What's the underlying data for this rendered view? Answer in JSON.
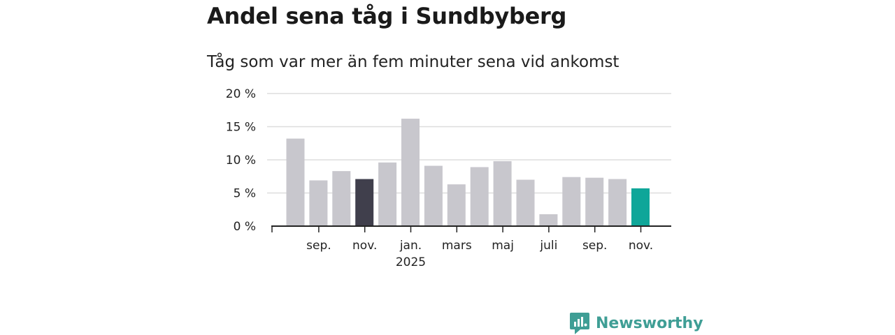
{
  "title": "Andel sena tåg i Sundbyberg",
  "subtitle": "Tåg som var mer än fem minuter sena vid ankomst",
  "brand": {
    "name": "Newsworthy",
    "icon": "newsworthy-logo-icon",
    "color": "#3f9e95"
  },
  "colors": {
    "default_bar": "#c8c7cd",
    "highlight_bar": "#403f4c",
    "latest_bar": "#0fa699",
    "grid": "#dddddd",
    "axis": "#222222"
  },
  "chart_data": {
    "type": "bar",
    "title": "Andel sena tåg i Sundbyberg",
    "subtitle": "Tåg som var mer än fem minuter sena vid ankomst",
    "xlabel": "",
    "ylabel": "",
    "ylim": [
      0,
      20
    ],
    "y_ticks": [
      0,
      5,
      10,
      15,
      20
    ],
    "y_tick_labels": [
      "0 %",
      "5 %",
      "10 %",
      "15 %",
      "20 %"
    ],
    "grid": true,
    "categories": [
      "2024-08",
      "2024-09",
      "2024-10",
      "2024-11",
      "2024-12",
      "2025-01",
      "2025-02",
      "2025-03",
      "2025-04",
      "2025-05",
      "2025-06",
      "2025-07",
      "2025-08",
      "2025-09",
      "2025-10",
      "2025-11"
    ],
    "values": [
      13.2,
      6.9,
      8.3,
      7.1,
      9.6,
      16.2,
      9.1,
      6.3,
      8.9,
      9.8,
      7.0,
      1.8,
      7.4,
      7.3,
      7.1,
      5.7
    ],
    "bar_styles": [
      "default",
      "default",
      "default",
      "highlight",
      "default",
      "default",
      "default",
      "default",
      "default",
      "default",
      "default",
      "default",
      "default",
      "default",
      "default",
      "latest"
    ],
    "x_tick_labels": [
      {
        "index": 1,
        "text": "sep."
      },
      {
        "index": 3,
        "text": "nov."
      },
      {
        "index": 5,
        "text": "jan.",
        "subtext": "2025"
      },
      {
        "index": 7,
        "text": "mars"
      },
      {
        "index": 9,
        "text": "maj"
      },
      {
        "index": 11,
        "text": "juli"
      },
      {
        "index": 13,
        "text": "sep."
      },
      {
        "index": 15,
        "text": "nov."
      }
    ]
  }
}
